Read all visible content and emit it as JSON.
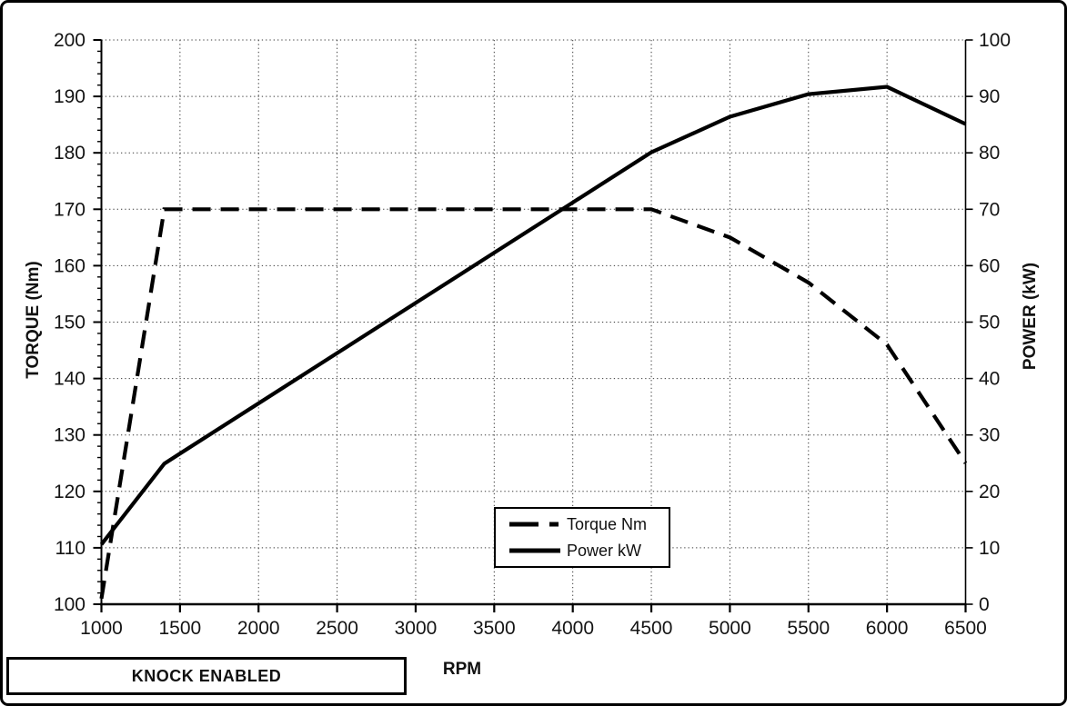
{
  "chart_data": {
    "type": "line",
    "title": "",
    "x_axis": {
      "label": "RPM",
      "min": 1000,
      "max": 6500,
      "major_step": 500,
      "ticks": [
        1000,
        1500,
        2000,
        2500,
        3000,
        3500,
        4000,
        4500,
        5000,
        5500,
        6000,
        6500
      ]
    },
    "y_left_axis": {
      "label": "TORQUE (Nm)",
      "min": 100,
      "max": 200,
      "major_step": 10,
      "minor_step": 2,
      "ticks": [
        100,
        110,
        120,
        130,
        140,
        150,
        160,
        170,
        180,
        190,
        200
      ]
    },
    "y_right_axis": {
      "label": "POWER (kW)",
      "min": 0,
      "max": 100,
      "major_step": 10,
      "ticks": [
        0,
        10,
        20,
        30,
        40,
        50,
        60,
        70,
        80,
        90,
        100
      ]
    },
    "x": [
      1000,
      1400,
      1500,
      2000,
      2500,
      3000,
      3500,
      4000,
      4500,
      5000,
      5500,
      6000,
      6500
    ],
    "series": [
      {
        "name": "Torque Nm",
        "axis": "left",
        "line_style": "dashed",
        "values": [
          101,
          170,
          170,
          170,
          170,
          170,
          170,
          170,
          170,
          165,
          157,
          146,
          125
        ]
      },
      {
        "name": "Power kW",
        "axis": "right",
        "line_style": "solid",
        "values": [
          10.6,
          24.9,
          26.7,
          35.6,
          44.5,
          53.4,
          62.3,
          71.2,
          80.1,
          86.4,
          90.4,
          91.7,
          85.1
        ]
      }
    ],
    "legend": {
      "position": "inside-bottom-center",
      "entries": [
        "Torque Nm",
        "Power kW"
      ]
    },
    "grid": {
      "horizontal": true,
      "vertical": true,
      "style": "dotted"
    }
  },
  "annotation": {
    "knock_label": "KNOCK ENABLED"
  },
  "colors": {
    "line": "#000000",
    "grid_dots": "#3a3a3a",
    "text": "#141414",
    "background": "#ffffff",
    "border": "#000000"
  }
}
